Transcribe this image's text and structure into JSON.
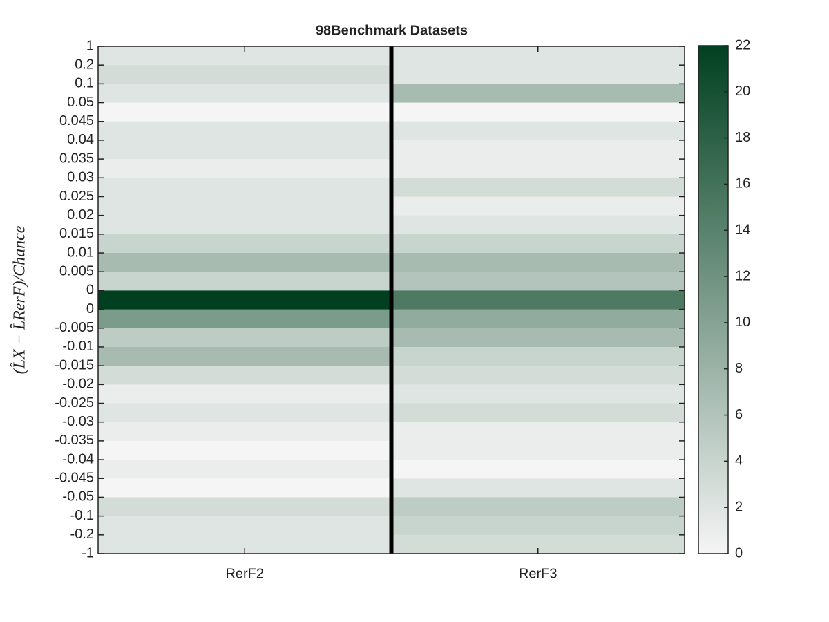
{
  "chart_data": {
    "type": "heatmap",
    "title": "98Benchmark Datasets",
    "ylabel": "(L̂X − L̂RerF)/Chance",
    "categories": [
      "RerF2",
      "RerF3"
    ],
    "y_edges": [
      1,
      0.2,
      0.1,
      0.05,
      0.045,
      0.04,
      0.035,
      0.03,
      0.025,
      0.02,
      0.015,
      0.01,
      0.005,
      0,
      0,
      -0.005,
      -0.01,
      -0.015,
      -0.02,
      -0.025,
      -0.03,
      -0.035,
      -0.04,
      -0.045,
      -0.05,
      -0.1,
      -0.2,
      -1
    ],
    "values": [
      [
        2,
        3,
        2,
        0,
        2,
        2,
        1,
        2,
        2,
        2,
        4,
        7,
        4,
        22,
        11,
        5,
        7,
        3,
        1,
        2,
        1,
        0,
        1,
        0,
        3,
        2,
        2
      ],
      [
        2,
        2,
        7,
        0,
        2,
        1,
        1,
        3,
        1,
        2,
        4,
        7,
        6,
        15,
        9,
        7,
        4,
        3,
        2,
        3,
        1,
        1,
        0,
        2,
        5,
        4,
        3
      ]
    ],
    "colormap": [
      "#f5f5f5",
      "#004020"
    ],
    "zlim": [
      0,
      22
    ],
    "zticks": [
      0,
      2,
      4,
      6,
      8,
      10,
      12,
      14,
      16,
      18,
      20,
      22
    ]
  }
}
